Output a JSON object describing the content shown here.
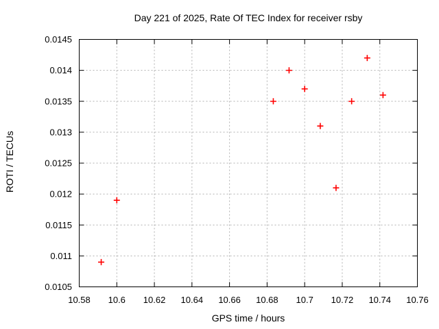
{
  "chart_data": {
    "type": "scatter",
    "title": "Day 221 of 2025, Rate Of TEC Index for receiver rsby",
    "xlabel": "GPS time / hours",
    "ylabel": "ROTI / TECUs",
    "xlim": [
      10.58,
      10.76
    ],
    "ylim": [
      0.0105,
      0.0145
    ],
    "x_ticks": {
      "values": [
        10.58,
        10.6,
        10.62,
        10.64,
        10.66,
        10.68,
        10.7,
        10.72,
        10.74,
        10.76
      ],
      "labels": [
        "10.58",
        "10.6",
        "10.62",
        "10.64",
        "10.66",
        "10.68",
        "10.7",
        "10.72",
        "10.74",
        "10.76"
      ]
    },
    "y_ticks": {
      "values": [
        0.0105,
        0.011,
        0.0115,
        0.012,
        0.0125,
        0.013,
        0.0135,
        0.014,
        0.0145
      ],
      "labels": [
        "0.0105",
        "0.011",
        "0.0115",
        "0.012",
        "0.0125",
        "0.013",
        "0.0135",
        "0.014",
        "0.0145"
      ]
    },
    "grid": true,
    "legend": "none",
    "marker": {
      "shape": "plus",
      "size": 9
    },
    "points": [
      [
        10.5917,
        0.0109
      ],
      [
        10.6,
        0.0119
      ],
      [
        10.6833,
        0.0135
      ],
      [
        10.6917,
        0.014
      ],
      [
        10.7,
        0.0137
      ],
      [
        10.7083,
        0.0131
      ],
      [
        10.7167,
        0.0121
      ],
      [
        10.725,
        0.0135
      ],
      [
        10.7333,
        0.0142
      ],
      [
        10.7417,
        0.0136
      ]
    ],
    "colors": {
      "background": "#ffffff",
      "axis": "#000000",
      "grid": "#b0b0b0",
      "marker": "#ff0000",
      "text": "#000000"
    }
  }
}
